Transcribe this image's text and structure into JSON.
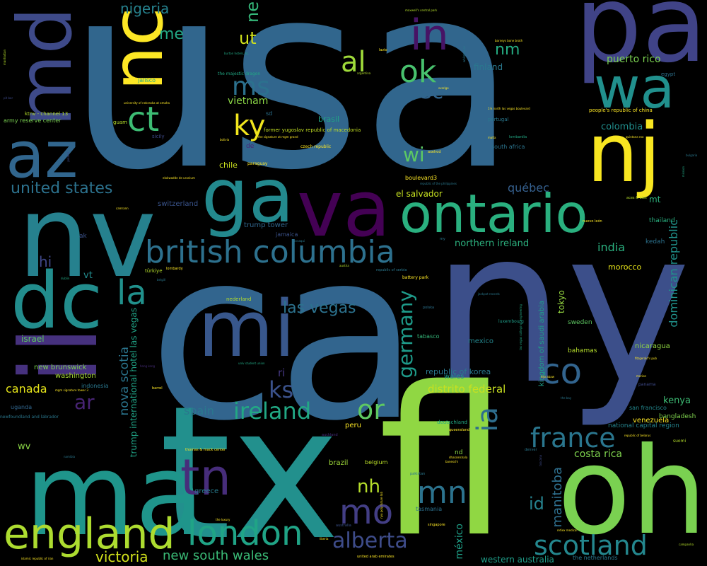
{
  "words": [
    {
      "text": "usa",
      "color": "#31668d"
    },
    {
      "text": "ca",
      "color": "#32658e"
    },
    {
      "text": "ny",
      "color": "#3c4f8a"
    },
    {
      "text": "fl",
      "color": "#90d743"
    },
    {
      "text": "tx",
      "color": "#22908d"
    },
    {
      "text": "oh",
      "color": "#7ad151"
    },
    {
      "text": "ma",
      "color": "#1f958b"
    },
    {
      "text": "nv",
      "color": "#26818e"
    },
    {
      "text": "il",
      "color": "#46317e"
    },
    {
      "text": "pa",
      "color": "#404387"
    },
    {
      "text": "nj",
      "color": "#f8e621"
    },
    {
      "text": "va",
      "color": "#440154"
    },
    {
      "text": "ga",
      "color": "#23898e"
    },
    {
      "text": "mi",
      "color": "#38578c"
    },
    {
      "text": "dc",
      "color": "#228d8d"
    },
    {
      "text": "md",
      "color": "#3e4a89"
    },
    {
      "text": "az",
      "color": "#31668e"
    },
    {
      "text": "nc",
      "color": "#fde725"
    },
    {
      "text": "wa",
      "color": "#21908d"
    },
    {
      "text": "ontario",
      "color": "#2ab07f"
    },
    {
      "text": "england",
      "color": "#addc30"
    },
    {
      "text": "london",
      "color": "#20a486"
    },
    {
      "text": "british columbia",
      "color": "#2d718e"
    },
    {
      "text": "tn",
      "color": "#472d7b"
    },
    {
      "text": "in",
      "color": "#471365"
    },
    {
      "text": "co",
      "color": "#32648e"
    },
    {
      "text": "scotland",
      "color": "#24878e"
    },
    {
      "text": "france",
      "color": "#2a768e"
    },
    {
      "text": "alberta",
      "color": "#3e4c8a"
    },
    {
      "text": "ireland",
      "color": "#22a884"
    },
    {
      "text": "mo",
      "color": "#433e85"
    },
    {
      "text": "mn",
      "color": "#2c738e"
    },
    {
      "text": "ct",
      "color": "#3dbc74"
    },
    {
      "text": "la",
      "color": "#21918c"
    },
    {
      "text": "ok",
      "color": "#48c16e"
    },
    {
      "text": "or",
      "color": "#5ec962"
    },
    {
      "text": "ky",
      "color": "#f1e51d"
    },
    {
      "text": "al",
      "color": "#9fda3a"
    },
    {
      "text": "ms",
      "color": "#2c718e"
    },
    {
      "text": "ks",
      "color": "#3b528b"
    },
    {
      "text": "ia",
      "color": "#2e6e8e"
    },
    {
      "text": "las vegas",
      "color": "#2c728e"
    },
    {
      "text": "germany",
      "color": "#1e9b8a"
    },
    {
      "text": "nh",
      "color": "#b5de2b"
    },
    {
      "text": "id",
      "color": "#26828e"
    },
    {
      "text": "sc",
      "color": "#32658e"
    },
    {
      "text": "wi",
      "color": "#5cc863"
    },
    {
      "text": "ar",
      "color": "#482475"
    },
    {
      "text": "united states",
      "color": "#2c728e"
    },
    {
      "text": "victoria",
      "color": "#d2e21b"
    },
    {
      "text": "new south wales",
      "color": "#3aba76"
    },
    {
      "text": "ut",
      "color": "#d0e11c"
    },
    {
      "text": "nm",
      "color": "#25ac82"
    },
    {
      "text": "hi",
      "color": "#3f4788"
    },
    {
      "text": "nigeria",
      "color": "#26828e"
    },
    {
      "text": "me",
      "color": "#22a785"
    },
    {
      "text": "ne",
      "color": "#35b779"
    },
    {
      "text": "manitoba",
      "color": "#2e6f8e"
    },
    {
      "text": "dominican republic",
      "color": "#20928c"
    },
    {
      "text": "india",
      "color": "#2ab07f"
    },
    {
      "text": "nova scotia",
      "color": "#2b758e"
    },
    {
      "text": "spain",
      "color": "#2a788e"
    },
    {
      "text": "canada",
      "color": "#e5e419"
    },
    {
      "text": "distrito federal",
      "color": "#c8e020"
    },
    {
      "text": "puerto rico",
      "color": "#7ad151"
    },
    {
      "text": "vietnam",
      "color": "#8bd646"
    },
    {
      "text": "méxico",
      "color": "#1fa088"
    },
    {
      "text": "costa rica",
      "color": "#7fd34e"
    },
    {
      "text": "québec",
      "color": "#355f8d"
    },
    {
      "text": "finland",
      "color": "#2a788e"
    },
    {
      "text": "colombia",
      "color": "#218e8d"
    },
    {
      "text": "northern ireland",
      "color": "#2cb17e"
    },
    {
      "text": "vt",
      "color": "#228b8d"
    },
    {
      "text": "kenya",
      "color": "#3dbc74"
    },
    {
      "text": "western australia",
      "color": "#1f9e89"
    },
    {
      "text": "mt",
      "color": "#2db27d"
    },
    {
      "text": "tokyo",
      "color": "#95d840"
    },
    {
      "text": "morocco",
      "color": "#e7e419"
    },
    {
      "text": "israel",
      "color": "#5cc863"
    },
    {
      "text": "el salvador",
      "color": "#c5e021"
    },
    {
      "text": "trump international hotel las vegas",
      "color": "#20a386"
    },
    {
      "text": "kingdom of saudi arabia",
      "color": "#1fa088"
    },
    {
      "text": "ri",
      "color": "#453781"
    },
    {
      "text": "wv",
      "color": "#8bd646"
    },
    {
      "text": "chile",
      "color": "#cae11f"
    },
    {
      "text": "brasil",
      "color": "#20a486"
    },
    {
      "text": "republic of korea",
      "color": "#2a788e"
    },
    {
      "text": "new brunswick",
      "color": "#7ad151"
    },
    {
      "text": "washington",
      "color": "#a8db34"
    },
    {
      "text": "switzerland",
      "color": "#3a548c"
    },
    {
      "text": "trump tower",
      "color": "#31678e"
    },
    {
      "text": "mexico",
      "color": "#24878e"
    },
    {
      "text": "wales",
      "color": "#1f998a"
    },
    {
      "text": "sweden",
      "color": "#5ec962"
    },
    {
      "text": "nicaragua",
      "color": "#90d743"
    },
    {
      "text": "venezuela",
      "color": "#fde725"
    },
    {
      "text": "bangladesh",
      "color": "#7fd34e"
    },
    {
      "text": "bahamas",
      "color": "#b5de2b"
    },
    {
      "text": "national capital region",
      "color": "#25848e"
    },
    {
      "text": "peru",
      "color": "#fde725"
    },
    {
      "text": "brazil",
      "color": "#9fda3a"
    },
    {
      "text": "greece",
      "color": "#287c8e"
    },
    {
      "text": "belgium",
      "color": "#bade28"
    },
    {
      "text": "nd",
      "color": "#8bd646"
    },
    {
      "text": "thailand",
      "color": "#29af7f"
    },
    {
      "text": "san francisco",
      "color": "#23888e"
    },
    {
      "text": "tasmania",
      "color": "#2c718e"
    },
    {
      "text": "south africa",
      "color": "#2b758e"
    },
    {
      "text": "jamaica",
      "color": "#3b528b"
    },
    {
      "text": "kedah",
      "color": "#2c728e"
    },
    {
      "text": "uganda",
      "color": "#31668e"
    },
    {
      "text": "boulevard3",
      "color": "#fde725"
    },
    {
      "text": "tabasco",
      "color": "#35b779"
    },
    {
      "text": "deutschland",
      "color": "#22a884"
    },
    {
      "text": "indonesia",
      "color": "#2a788e"
    },
    {
      "text": "ak",
      "color": "#3b528b"
    },
    {
      "text": "sd",
      "color": "#2c728e"
    },
    {
      "text": "de",
      "color": "#482878"
    },
    {
      "text": "army reserve center",
      "color": "#7ad151"
    },
    {
      "text": "ktnv - channel 13",
      "color": "#b5de2b"
    },
    {
      "text": "former yugoslav republic of macedonia",
      "color": "#c2df23"
    },
    {
      "text": "people's republic of china",
      "color": "#fde725"
    },
    {
      "text": "jalisco",
      "color": "#22a884"
    },
    {
      "text": "portugal",
      "color": "#2a788e"
    },
    {
      "text": "egypt",
      "color": "#2c728e"
    },
    {
      "text": "guam",
      "color": "#b5de2b"
    },
    {
      "text": "sicily",
      "color": "#3e4a89"
    },
    {
      "text": "paraguay",
      "color": "#fde725"
    },
    {
      "text": "czech republic",
      "color": "#fde725"
    },
    {
      "text": "lombardy",
      "color": "#fde725"
    },
    {
      "text": "türkiye",
      "color": "#b5de2b"
    },
    {
      "text": "battery park",
      "color": "#fde725"
    },
    {
      "text": "republic of serbia",
      "color": "#2a788e"
    },
    {
      "text": "nederland",
      "color": "#b5de2b"
    },
    {
      "text": "polska",
      "color": "#2c728e"
    },
    {
      "text": "luxembourg",
      "color": "#1f9e89"
    },
    {
      "text": "queensland",
      "color": "#fde725"
    },
    {
      "text": "pakistan",
      "color": "#2a788e"
    },
    {
      "text": "singapore",
      "color": "#fde725"
    },
    {
      "text": "australia",
      "color": "#3b528b"
    },
    {
      "text": "united arab emirates",
      "color": "#fde725"
    },
    {
      "text": "the netherlands",
      "color": "#2a788e"
    },
    {
      "text": "suomi",
      "color": "#b5de2b"
    },
    {
      "text": "panama",
      "color": "#3e4a89"
    },
    {
      "text": "denver",
      "color": "#2a788e"
    },
    {
      "text": "thomas & mack center",
      "color": "#fde725"
    },
    {
      "text": "newfoundland and labrador",
      "color": "#2a788e"
    },
    {
      "text": "dublin",
      "color": "#22a884"
    },
    {
      "text": "barrel",
      "color": "#fde725"
    },
    {
      "text": "auckland",
      "color": "#472d7b"
    },
    {
      "text": "lazio",
      "color": "#fde725"
    },
    {
      "text": "maxwell's central park",
      "color": "#b5de2b"
    },
    {
      "text": "barneys bone broth",
      "color": "#fde725"
    },
    {
      "text": "the majestic dragon",
      "color": "#22a884"
    },
    {
      "text": "university of nebraska at omaha",
      "color": "#fde725"
    },
    {
      "text": "the signature at mgm grand",
      "color": "#fde725"
    },
    {
      "text": "sverige",
      "color": "#fde725"
    },
    {
      "text": "argentina",
      "color": "#b5de2b"
    },
    {
      "text": "manhattan",
      "color": "#b5de2b"
    },
    {
      "text": "bolivia",
      "color": "#fde725"
    },
    {
      "text": "poland",
      "color": "#3e4a89"
    },
    {
      "text": "axelrod",
      "color": "#fde725"
    },
    {
      "text": "lombardia",
      "color": "#22a884"
    },
    {
      "text": "malta",
      "color": "#fde725"
    },
    {
      "text": "bulgaria",
      "color": "#2a788e"
    },
    {
      "text": "aces & ales",
      "color": "#b5de2b"
    },
    {
      "text": "nuevo león",
      "color": "#fde725"
    },
    {
      "text": "mission",
      "color": "#22a884"
    },
    {
      "text": "republic of the philippines",
      "color": "#2a788e"
    },
    {
      "text": "ccsaqui",
      "color": "#2a788e"
    },
    {
      "text": "austria",
      "color": "#b5de2b"
    },
    {
      "text": "camrann",
      "color": "#fde725"
    },
    {
      "text": "my",
      "color": "#2a788e"
    },
    {
      "text": "belgië",
      "color": "#2a788e"
    },
    {
      "text": "jackpot records",
      "color": "#2a788e"
    },
    {
      "text": "unlv student union",
      "color": "#22a884"
    },
    {
      "text": "nyu poly future lab",
      "color": "#fde725"
    },
    {
      "text": "las vegas college of engineering",
      "color": "#22a884"
    },
    {
      "text": "hong kong",
      "color": "#472d7b"
    },
    {
      "text": "mgm signature tower 3",
      "color": "#fde725"
    },
    {
      "text": "fitzgerald's pub",
      "color": "#fde725"
    },
    {
      "text": "merion",
      "color": "#fde725"
    },
    {
      "text": "toscana",
      "color": "#3e4a89"
    },
    {
      "text": "republic of belarus",
      "color": "#fde725"
    },
    {
      "text": "namibia",
      "color": "#2a788e"
    },
    {
      "text": "liberia",
      "color": "#fde725"
    },
    {
      "text": "islamic republic of iran",
      "color": "#fde725"
    },
    {
      "text": "campanha",
      "color": "#b5de2b"
    },
    {
      "text": "retiex medical",
      "color": "#fde725"
    },
    {
      "text": "the luxury",
      "color": "#fde725"
    },
    {
      "text": "the bay",
      "color": "#2a788e"
    },
    {
      "text": "quintana roo",
      "color": "#fde725"
    },
    {
      "text": "kijo abaw",
      "color": "#fde725"
    },
    {
      "text": "whitehouse",
      "color": "#2a788e"
    },
    {
      "text": "burton hotels, llc.",
      "color": "#22a884"
    },
    {
      "text": "1¼ north las vegas boulevard",
      "color": "#fde725"
    },
    {
      "text": "elokwadde de uranium",
      "color": "#fde725"
    },
    {
      "text": "pit bar",
      "color": "#3e4a89"
    },
    {
      "text": "dharamshala",
      "color": "#fde725"
    },
    {
      "text": "baneschi",
      "color": "#fde725"
    }
  ]
}
